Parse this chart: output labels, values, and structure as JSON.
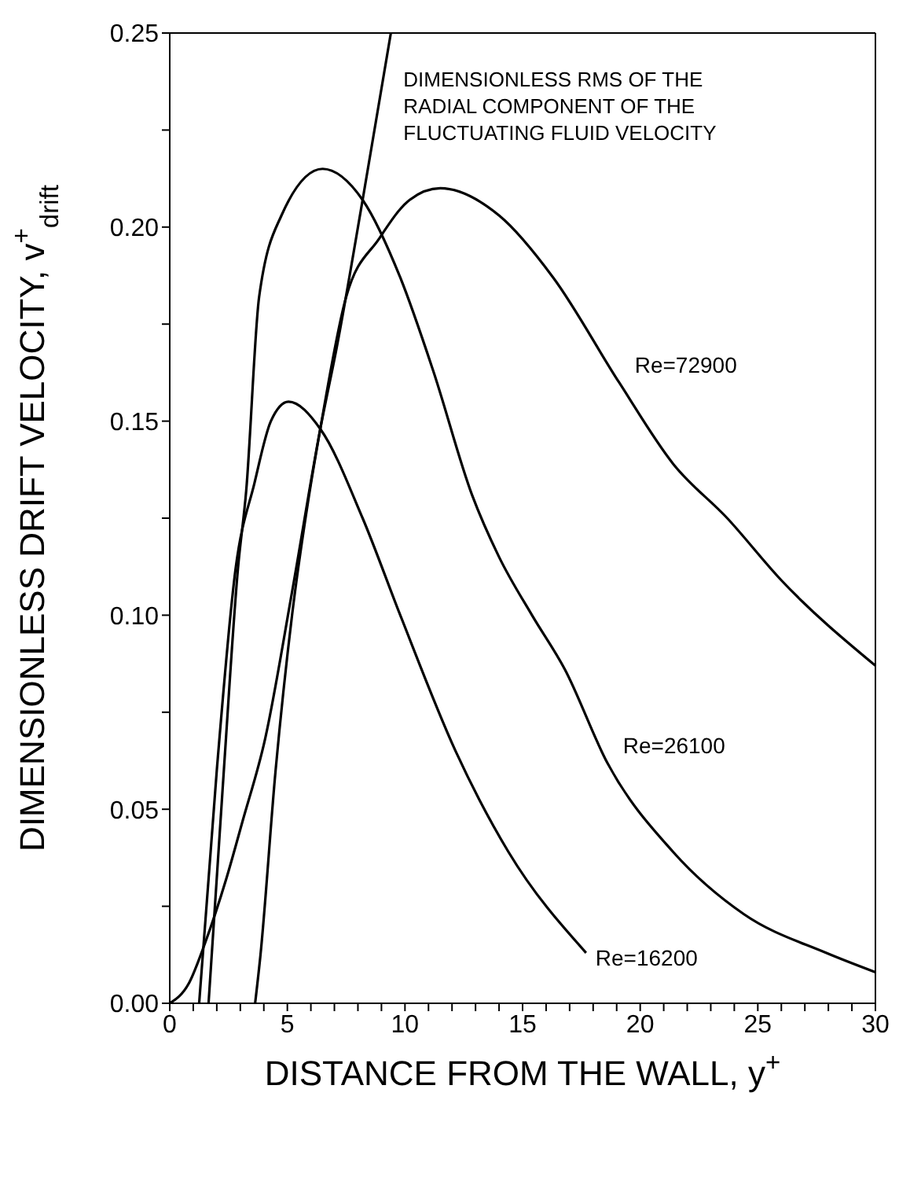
{
  "chart_data": {
    "type": "line",
    "xlabel": "DISTANCE FROM THE WALL, y$^{+}$",
    "ylabel": "DIMENSIONLESS DRIFT VELOCITY, v$^{+}$$_{drift}$",
    "xlim": [
      0,
      30
    ],
    "ylim": [
      0,
      0.25
    ],
    "xticks": [
      0,
      {
        "value": 1,
        "label": null
      },
      {
        "value": 2,
        "label": null
      },
      {
        "value": 3,
        "label": null
      },
      {
        "value": 4,
        "label": null
      },
      5,
      {
        "value": 6,
        "label": null
      },
      {
        "value": 7,
        "label": null
      },
      {
        "value": 8,
        "label": null
      },
      {
        "value": 9,
        "label": null
      },
      10,
      {
        "value": 11,
        "label": null
      },
      {
        "value": 12,
        "label": null
      },
      {
        "value": 13,
        "label": null
      },
      {
        "value": 14,
        "label": null
      },
      15,
      {
        "value": 16,
        "label": null
      },
      {
        "value": 17,
        "label": null
      },
      {
        "value": 18,
        "label": null
      },
      {
        "value": 19,
        "label": null
      },
      20,
      {
        "value": 21,
        "label": null
      },
      {
        "value": 22,
        "label": null
      },
      {
        "value": 23,
        "label": null
      },
      {
        "value": 24,
        "label": null
      },
      25,
      {
        "value": 26,
        "label": null
      },
      {
        "value": 27,
        "label": null
      },
      {
        "value": 28,
        "label": null
      },
      {
        "value": 29,
        "label": null
      },
      30
    ],
    "yticks": [
      {
        "value": 0,
        "label": "0.00"
      },
      {
        "value": 0.025,
        "label": null
      },
      {
        "value": 0.05,
        "label": "0.05"
      },
      {
        "value": 0.075,
        "label": null
      },
      {
        "value": 0.1,
        "label": "0.10"
      },
      {
        "value": 0.125,
        "label": null
      },
      {
        "value": 0.15,
        "label": "0.15"
      },
      {
        "value": 0.175,
        "label": null
      },
      {
        "value": 0.2,
        "label": "0.20"
      },
      {
        "value": 0.225,
        "label": null
      },
      {
        "value": 0.25,
        "label": "0.25"
      }
    ],
    "marker": "none",
    "line_style": "solid",
    "grid": false,
    "legend": false,
    "series": [
      {
        "name": "Re=16200",
        "color": "#000000",
        "x": [
          1.25,
          2.0,
          2.8,
          3.6,
          4.3,
          5.05,
          6.4,
          8.2,
          9.8,
          12.15,
          14.4,
          17.7
        ],
        "values": [
          0,
          0.06,
          0.112,
          0.134,
          0.15,
          0.155,
          0.148,
          0.125,
          0.1,
          0.065,
          0.039,
          0.013
        ]
      },
      {
        "name": "Re=26100",
        "color": "#000000",
        "x": [
          1.65,
          2.3,
          2.9,
          3.25,
          3.8,
          4.75,
          6.5,
          8.2,
          9.8,
          11.2,
          12.85,
          14.0,
          15.4,
          16.8,
          18.6,
          21.4,
          24.4,
          27.9,
          30
        ],
        "values": [
          0,
          0.06,
          0.112,
          0.132,
          0.182,
          0.203,
          0.215,
          0.207,
          0.187,
          0.163,
          0.131,
          0.115,
          0.1,
          0.086,
          0.062,
          0.039,
          0.023,
          0.013,
          0.008
        ]
      },
      {
        "name": "Re=72900",
        "color": "#000000",
        "x": [
          3.63,
          3.85,
          4.5,
          5.2,
          5.9,
          6.4,
          7.5,
          8.9,
          10.2,
          11.5,
          14.0,
          16.3,
          19.1,
          21.4,
          23.7,
          26.0,
          30
        ],
        "values": [
          0,
          0.012,
          0.06,
          0.1,
          0.13,
          0.148,
          0.182,
          0.197,
          0.207,
          0.21,
          0.203,
          0.187,
          0.16,
          0.139,
          0.125,
          0.109,
          0.087
        ]
      },
      {
        "name": "DIMENSIONLESS RMS OF THE RADIAL COMPONENT OF THE FLUCTUATING FLUID VELOCITY",
        "color": "#000000",
        "x": [
          0,
          0.8,
          1.5,
          2.4,
          3.1,
          4.05,
          5.2,
          6.4,
          7.1,
          8.2,
          9.4
        ],
        "values": [
          0,
          0.005,
          0.0155,
          0.032,
          0.047,
          0.068,
          0.106,
          0.148,
          0.169,
          0.207,
          0.25
        ]
      }
    ]
  }
}
